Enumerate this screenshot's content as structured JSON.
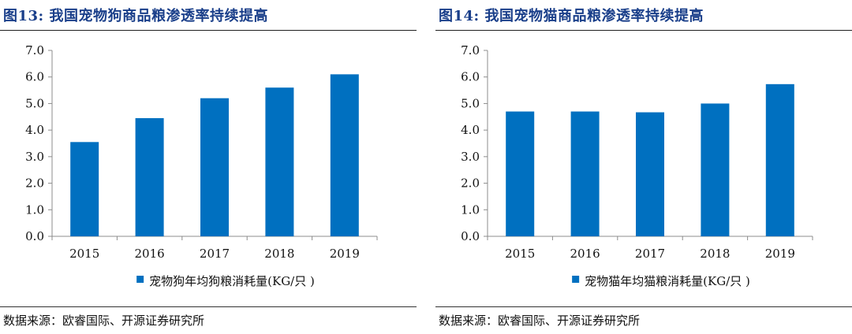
{
  "charts": [
    {
      "figure_title": "图13:  我国宠物狗商品粮渗透率持续提高",
      "source": "数据来源：欧睿国际、开源证券研究所",
      "legend_label": "宠物狗年均狗粮消耗量(KG/只 )"
    },
    {
      "figure_title": "图14:  我国宠物猫商品粮渗透率持续提高",
      "source": "数据来源：欧睿国际、开源证券研究所",
      "legend_label": "宠物猫年均猫粮消耗量(KG/只 )"
    }
  ],
  "chart_data": [
    {
      "type": "bar",
      "categories": [
        "2015",
        "2016",
        "2017",
        "2018",
        "2019"
      ],
      "series": [
        {
          "name": "宠物狗年均狗粮消耗量(KG/只 )",
          "values": [
            3.55,
            4.45,
            5.2,
            5.6,
            6.1
          ],
          "color": "#0070c0"
        }
      ],
      "ylim": [
        0,
        7
      ],
      "yticks": [
        "0.0",
        "1.0",
        "2.0",
        "3.0",
        "4.0",
        "5.0",
        "6.0",
        "7.0"
      ],
      "grid": false,
      "legend": "bottom-center"
    },
    {
      "type": "bar",
      "categories": [
        "2015",
        "2016",
        "2017",
        "2018",
        "2019"
      ],
      "series": [
        {
          "name": "宠物猫年均猫粮消耗量(KG/只 )",
          "values": [
            4.7,
            4.7,
            4.67,
            5.0,
            5.73
          ],
          "color": "#0070c0"
        }
      ],
      "ylim": [
        0,
        7
      ],
      "yticks": [
        "0.0",
        "1.0",
        "2.0",
        "3.0",
        "4.0",
        "5.0",
        "6.0",
        "7.0"
      ],
      "grid": false,
      "legend": "bottom-center"
    }
  ]
}
